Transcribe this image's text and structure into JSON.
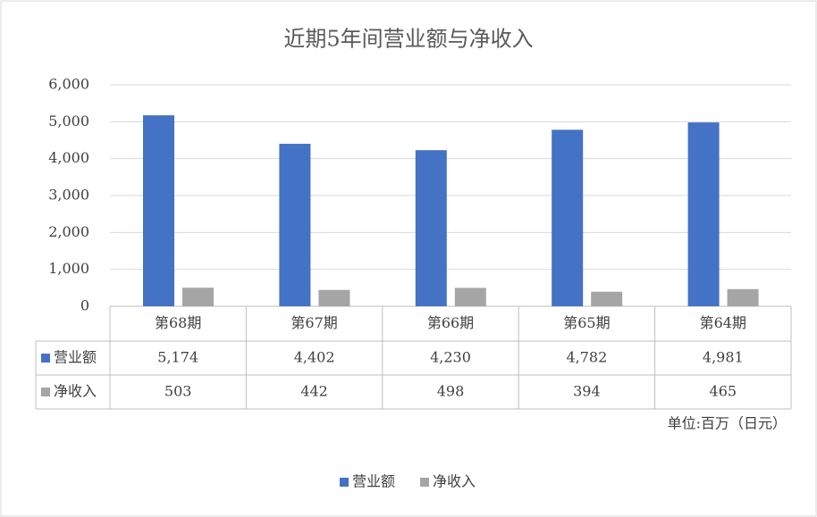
{
  "chart_data": {
    "type": "bar",
    "title": "近期5年间营业额与净收入",
    "categories": [
      "第68期",
      "第67期",
      "第66期",
      "第65期",
      "第64期"
    ],
    "series": [
      {
        "name": "营业额",
        "color": "#4472c4",
        "values": [
          5174,
          4402,
          4230,
          4782,
          4981
        ],
        "value_labels": [
          "5,174",
          "4,402",
          "4,230",
          "4,782",
          "4,981"
        ]
      },
      {
        "name": "净收入",
        "color": "#a5a5a5",
        "values": [
          503,
          442,
          498,
          394,
          465
        ]
      }
    ],
    "ylim": [
      0,
      6000
    ],
    "yticks": [
      0,
      {
        "value": 1000,
        "label": "1,000"
      },
      {
        "value": 2000,
        "label": "2,000"
      },
      {
        "value": 3000,
        "label": "3,000"
      },
      {
        "value": 4000,
        "label": "4,000"
      },
      {
        "value": 5000,
        "label": "5,000"
      },
      {
        "value": 6000,
        "label": "6,000"
      }
    ],
    "grid": true,
    "unit": "单位:百万（日元）"
  }
}
